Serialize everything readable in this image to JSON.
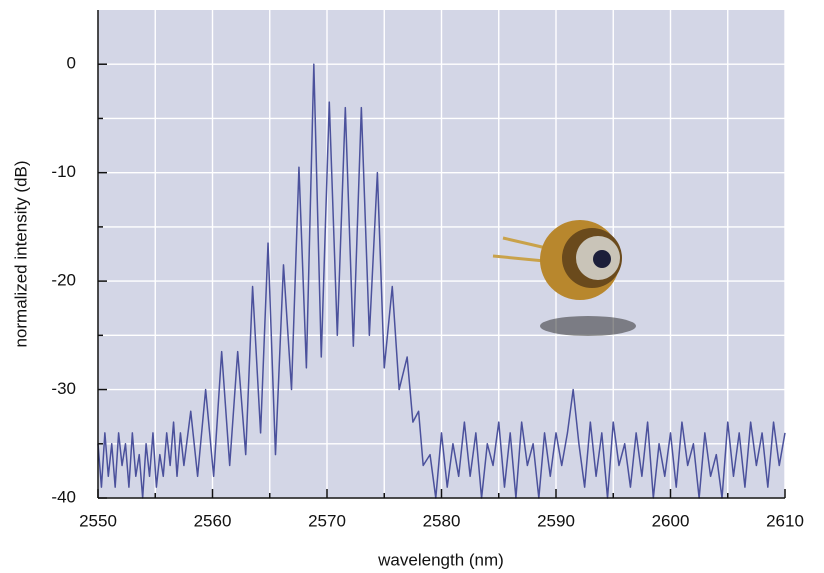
{
  "chart_data": {
    "type": "line",
    "x_label": "wavelength (nm)",
    "y_label": "normalized intensity (dB)",
    "x": [
      2550.0,
      2550.3,
      2550.6,
      2550.9,
      2551.2,
      2551.5,
      2551.8,
      2552.1,
      2552.4,
      2552.7,
      2553.0,
      2553.3,
      2553.6,
      2553.9,
      2554.2,
      2554.5,
      2554.8,
      2555.1,
      2555.4,
      2555.7,
      2556.0,
      2556.3,
      2556.6,
      2556.9,
      2557.2,
      2557.5,
      2558.1,
      2558.7,
      2559.4,
      2560.1,
      2560.8,
      2561.5,
      2562.2,
      2562.9,
      2563.5,
      2564.2,
      2564.85,
      2565.5,
      2566.2,
      2566.9,
      2567.55,
      2568.2,
      2568.85,
      2569.5,
      2570.2,
      2570.9,
      2571.6,
      2572.3,
      2573.0,
      2573.7,
      2574.4,
      2575.0,
      2575.7,
      2576.3,
      2577.0,
      2577.5,
      2578.0,
      2578.4,
      2579.0,
      2579.5,
      2580.0,
      2580.5,
      2581.0,
      2581.5,
      2582.0,
      2582.5,
      2583.0,
      2583.5,
      2584.0,
      2584.5,
      2585.0,
      2585.5,
      2586.0,
      2586.5,
      2587.0,
      2587.5,
      2588.0,
      2588.5,
      2589.0,
      2589.5,
      2590.0,
      2590.5,
      2591.0,
      2591.5,
      2592.0,
      2592.5,
      2593.0,
      2593.5,
      2594.0,
      2594.5,
      2595.0,
      2595.5,
      2596.0,
      2596.5,
      2597.0,
      2597.5,
      2598.0,
      2598.5,
      2599.0,
      2599.5,
      2600.0,
      2600.5,
      2601.0,
      2601.5,
      2602.0,
      2602.5,
      2603.0,
      2603.5,
      2604.0,
      2604.5,
      2605.0,
      2605.5,
      2606.0,
      2606.5,
      2607.0,
      2607.5,
      2608.0,
      2608.5,
      2609.0,
      2609.5,
      2610.0
    ],
    "series": [
      {
        "color": "#4b519c",
        "values": [
          -35,
          -39,
          -34,
          -38,
          -35,
          -39,
          -34,
          -37,
          -35,
          -39,
          -34,
          -38,
          -36,
          -40,
          -35,
          -38,
          -34,
          -39,
          -36,
          -38,
          -34,
          -37,
          -33,
          -38,
          -34,
          -37,
          -32,
          -38,
          -30,
          -38,
          -26.5,
          -37,
          -26.5,
          -36,
          -20.5,
          -34,
          -16.5,
          -36,
          -18.5,
          -30,
          -9.5,
          -28,
          0,
          -27,
          -3.5,
          -25,
          -4,
          -26,
          -4,
          -25,
          -10,
          -28,
          -20.5,
          -30,
          -27,
          -33,
          -32,
          -37,
          -36,
          -40,
          -34,
          -39,
          -35,
          -38,
          -33,
          -38,
          -34,
          -40,
          -35,
          -37,
          -33,
          -39,
          -34,
          -40,
          -33,
          -37,
          -35,
          -40,
          -34,
          -38,
          -34,
          -37,
          -34,
          -30,
          -35,
          -39,
          -33,
          -38,
          -34,
          -40,
          -33,
          -37,
          -35,
          -39,
          -34,
          -38,
          -33,
          -40,
          -35,
          -38,
          -34,
          -39,
          -33,
          -37,
          -35,
          -40,
          -34,
          -38,
          -36,
          -40,
          -33,
          -38,
          -34,
          -39,
          -33,
          -37,
          -34,
          -39,
          -33,
          -37,
          -34
        ]
      }
    ],
    "xlim": [
      2550,
      2610
    ],
    "ylim": [
      -40,
      5
    ],
    "xticks": [
      2550,
      2560,
      2570,
      2580,
      2590,
      2600,
      2610
    ],
    "yticks": [
      -40,
      -30,
      -20,
      -10,
      0
    ],
    "grid": true,
    "minor_grid": true,
    "background": "#d3d6e6"
  }
}
